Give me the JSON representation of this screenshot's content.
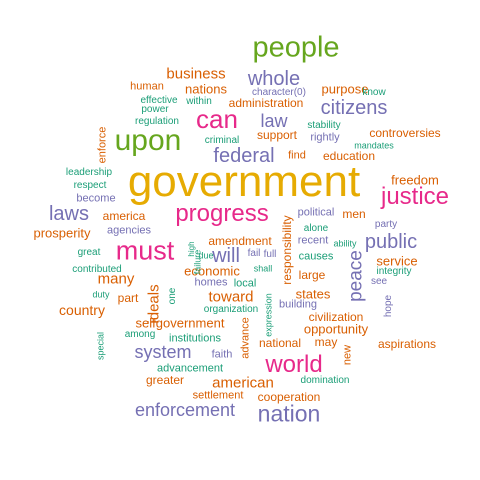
{
  "colors": {
    "green": "#66a61e",
    "orange": "#d95f02",
    "purple": "#7570b3",
    "pink": "#e7298a",
    "teal": "#1b9e77",
    "gold": "#e6ab02"
  },
  "words": [
    {
      "text": "government",
      "color": "gold",
      "weight": 100
    },
    {
      "text": "people",
      "color": "green",
      "weight": 60
    },
    {
      "text": "upon",
      "color": "green",
      "weight": 62
    },
    {
      "text": "can",
      "color": "pink",
      "weight": 56
    },
    {
      "text": "progress",
      "color": "pink",
      "weight": 52
    },
    {
      "text": "must",
      "color": "pink",
      "weight": 60
    },
    {
      "text": "justice",
      "color": "pink",
      "weight": 52
    },
    {
      "text": "world",
      "color": "pink",
      "weight": 50
    },
    {
      "text": "nation",
      "color": "purple",
      "weight": 50
    },
    {
      "text": "whole",
      "color": "purple",
      "weight": 42
    },
    {
      "text": "citizens",
      "color": "purple",
      "weight": 42
    },
    {
      "text": "federal",
      "color": "purple",
      "weight": 40
    },
    {
      "text": "public",
      "color": "purple",
      "weight": 40
    },
    {
      "text": "laws",
      "color": "purple",
      "weight": 40
    },
    {
      "text": "enforcement",
      "color": "purple",
      "weight": 38
    },
    {
      "text": "system",
      "color": "purple",
      "weight": 34
    },
    {
      "text": "peace",
      "color": "purple",
      "weight": 36
    },
    {
      "text": "will",
      "color": "purple",
      "weight": 38
    },
    {
      "text": "law",
      "color": "purple",
      "weight": 34
    },
    {
      "text": "business",
      "color": "orange",
      "weight": 30
    },
    {
      "text": "nations",
      "color": "orange",
      "weight": 26
    },
    {
      "text": "purpose",
      "color": "orange",
      "weight": 26
    },
    {
      "text": "freedom",
      "color": "orange",
      "weight": 26
    },
    {
      "text": "prosperity",
      "color": "orange",
      "weight": 26
    },
    {
      "text": "many",
      "color": "orange",
      "weight": 30
    },
    {
      "text": "toward",
      "color": "orange",
      "weight": 30
    },
    {
      "text": "country",
      "color": "orange",
      "weight": 28
    },
    {
      "text": "american",
      "color": "orange",
      "weight": 30
    },
    {
      "text": "ideals",
      "color": "orange",
      "weight": 30
    },
    {
      "text": "service",
      "color": "orange",
      "weight": 24
    },
    {
      "text": "economic",
      "color": "orange",
      "weight": 24
    },
    {
      "text": "states",
      "color": "orange",
      "weight": 24
    },
    {
      "text": "selfgovernment",
      "color": "orange",
      "weight": 24
    },
    {
      "text": "opportunity",
      "color": "orange",
      "weight": 24
    },
    {
      "text": "civilization",
      "color": "orange",
      "weight": 22
    },
    {
      "text": "aspirations",
      "color": "orange",
      "weight": 22
    },
    {
      "text": "responsibility",
      "color": "orange",
      "weight": 22
    },
    {
      "text": "education",
      "color": "orange",
      "weight": 22
    },
    {
      "text": "controversies",
      "color": "orange",
      "weight": 22
    },
    {
      "text": "support",
      "color": "orange",
      "weight": 22
    },
    {
      "text": "amendment",
      "color": "orange",
      "weight": 22
    },
    {
      "text": "large",
      "color": "orange",
      "weight": 22
    },
    {
      "text": "may",
      "color": "orange",
      "weight": 22
    },
    {
      "text": "national",
      "color": "orange",
      "weight": 22
    },
    {
      "text": "administration",
      "color": "orange",
      "weight": 22
    },
    {
      "text": "america",
      "color": "orange",
      "weight": 22
    },
    {
      "text": "men",
      "color": "orange",
      "weight": 22
    },
    {
      "text": "part",
      "color": "orange",
      "weight": 22
    },
    {
      "text": "greater",
      "color": "orange",
      "weight": 20
    },
    {
      "text": "settlement",
      "color": "orange",
      "weight": 20
    },
    {
      "text": "cooperation",
      "color": "orange",
      "weight": 20
    },
    {
      "text": "advance",
      "color": "orange",
      "weight": 20
    },
    {
      "text": "human",
      "color": "orange",
      "weight": 20
    },
    {
      "text": "find",
      "color": "orange",
      "weight": 20
    },
    {
      "text": "new",
      "color": "orange",
      "weight": 20
    },
    {
      "text": "enforce",
      "color": "orange",
      "weight": 18
    },
    {
      "text": "character(0)",
      "color": "purple",
      "weight": 18
    },
    {
      "text": "fail",
      "color": "purple",
      "weight": 18
    },
    {
      "text": "full",
      "color": "purple",
      "weight": 18
    },
    {
      "text": "homes",
      "color": "purple",
      "weight": 18
    },
    {
      "text": "faith",
      "color": "purple",
      "weight": 18
    },
    {
      "text": "agencies",
      "color": "purple",
      "weight": 18
    },
    {
      "text": "rightly",
      "color": "purple",
      "weight": 18
    },
    {
      "text": "become",
      "color": "purple",
      "weight": 16
    },
    {
      "text": "recent",
      "color": "purple",
      "weight": 18
    },
    {
      "text": "hope",
      "color": "purple",
      "weight": 16
    },
    {
      "text": "see",
      "color": "purple",
      "weight": 16
    },
    {
      "text": "party",
      "color": "purple",
      "weight": 16
    },
    {
      "text": "political",
      "color": "purple",
      "weight": 16
    },
    {
      "text": "building",
      "color": "purple",
      "weight": 18
    },
    {
      "text": "advancement",
      "color": "teal",
      "weight": 18
    },
    {
      "text": "effective",
      "color": "teal",
      "weight": 16
    },
    {
      "text": "power",
      "color": "teal",
      "weight": 16
    },
    {
      "text": "within",
      "color": "teal",
      "weight": 16
    },
    {
      "text": "regulation",
      "color": "teal",
      "weight": 16
    },
    {
      "text": "criminal",
      "color": "teal",
      "weight": 16
    },
    {
      "text": "stability",
      "color": "teal",
      "weight": 16
    },
    {
      "text": "know",
      "color": "teal",
      "weight": 16
    },
    {
      "text": "mandates",
      "color": "teal",
      "weight": 14
    },
    {
      "text": "leadership",
      "color": "teal",
      "weight": 16
    },
    {
      "text": "respect",
      "color": "teal",
      "weight": 16
    },
    {
      "text": "alone",
      "color": "teal",
      "weight": 16
    },
    {
      "text": "ability",
      "color": "teal",
      "weight": 14
    },
    {
      "text": "causes",
      "color": "teal",
      "weight": 18
    },
    {
      "text": "integrity",
      "color": "teal",
      "weight": 16
    },
    {
      "text": "great",
      "color": "teal",
      "weight": 16
    },
    {
      "text": "contributed",
      "color": "teal",
      "weight": 16
    },
    {
      "text": "duty",
      "color": "teal",
      "weight": 14
    },
    {
      "text": "among",
      "color": "teal",
      "weight": 16
    },
    {
      "text": "institutions",
      "color": "teal",
      "weight": 18
    },
    {
      "text": "organization",
      "color": "teal",
      "weight": 16
    },
    {
      "text": "local",
      "color": "teal",
      "weight": 16
    },
    {
      "text": "due",
      "color": "teal",
      "weight": 14
    },
    {
      "text": "shall",
      "color": "teal",
      "weight": 14
    },
    {
      "text": "high",
      "color": "teal",
      "weight": 12
    },
    {
      "text": "failure",
      "color": "teal",
      "weight": 14
    },
    {
      "text": "one",
      "color": "teal",
      "weight": 14
    },
    {
      "text": "special",
      "color": "teal",
      "weight": 14
    },
    {
      "text": "expression",
      "color": "teal",
      "weight": 14
    },
    {
      "text": "domination",
      "color": "teal",
      "weight": 14
    }
  ]
}
